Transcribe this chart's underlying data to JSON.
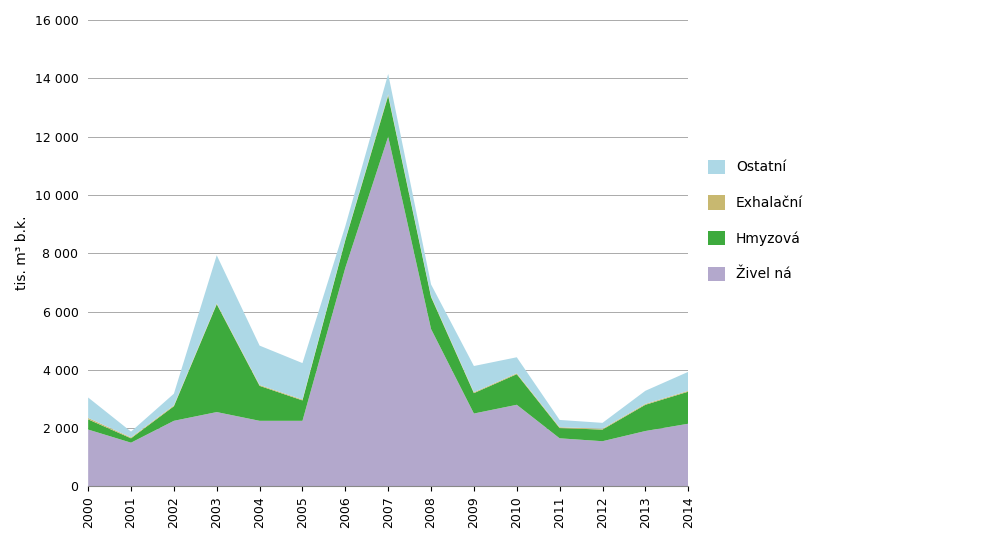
{
  "years": [
    2000,
    2001,
    2002,
    2003,
    2004,
    2005,
    2006,
    2007,
    2008,
    2009,
    2010,
    2011,
    2012,
    2013,
    2014
  ],
  "zivelna": [
    1950,
    1500,
    2250,
    2550,
    2250,
    2250,
    7500,
    12000,
    5400,
    2500,
    2800,
    1650,
    1550,
    1900,
    2150
  ],
  "hmyzova": [
    350,
    150,
    500,
    3700,
    1200,
    700,
    950,
    1400,
    1100,
    700,
    1050,
    350,
    400,
    900,
    1100
  ],
  "exhalacu": [
    50,
    30,
    30,
    30,
    30,
    30,
    30,
    50,
    30,
    30,
    30,
    30,
    30,
    30,
    30
  ],
  "ostatni": [
    700,
    200,
    400,
    1650,
    1350,
    1250,
    450,
    700,
    400,
    900,
    550,
    250,
    200,
    450,
    650
  ],
  "colors": {
    "zivelna": "#b3a8cc",
    "hmyzova": "#3daa3d",
    "exhalacu": "#c8b870",
    "ostatni": "#add8e6"
  },
  "legend_labels": [
    "Ostatní",
    "Exhalační",
    "Hmyzová",
    "Živel ná"
  ],
  "ylabel": "tis. m³ b.k.",
  "ylim": [
    0,
    16000
  ],
  "yticks": [
    0,
    2000,
    4000,
    6000,
    8000,
    10000,
    12000,
    14000,
    16000
  ],
  "background_color": "#ffffff",
  "grid_color": "#aaaaaa"
}
